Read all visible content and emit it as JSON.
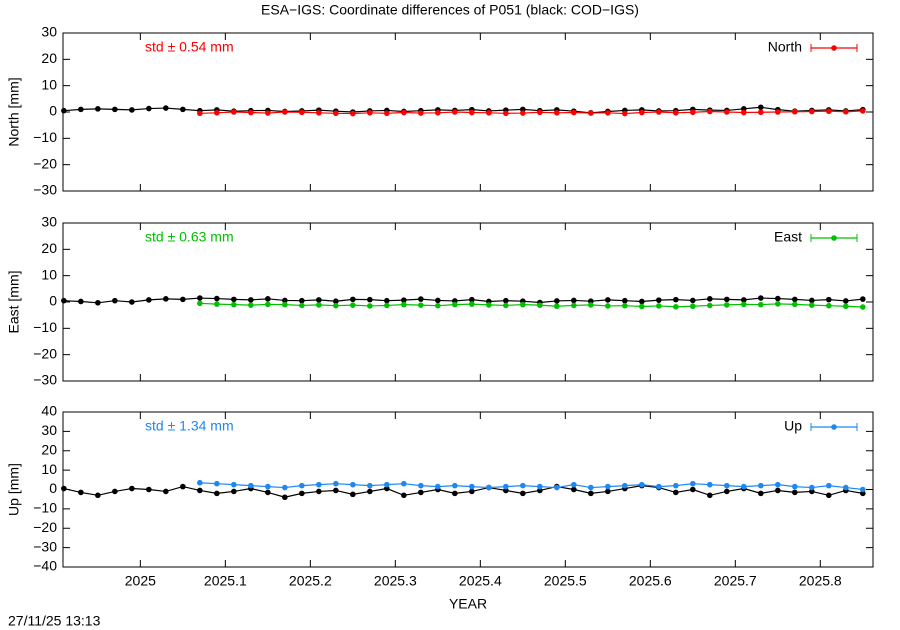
{
  "title": "ESA−IGS: Coordinate differences of P051 (black: COD−IGS)",
  "timestamp": "27/11/25 13:13",
  "chart_data": [
    {
      "type": "line",
      "ylabel": "North [mm]",
      "annotation": "std ± 0.54 mm",
      "legend": "top right",
      "xlim": [
        2024.909,
        2025.862
      ],
      "ylim": [
        -30,
        30
      ],
      "xticks": [
        2025,
        2025.1,
        2025.2,
        2025.3,
        2025.4,
        2025.5,
        2025.6,
        2025.7,
        2025.8
      ],
      "yticks": [
        {
          "value": -30,
          "label": "−30"
        },
        {
          "value": -20,
          "label": "−20"
        },
        {
          "value": -10,
          "label": "−10"
        },
        0,
        10,
        20,
        30
      ],
      "x": [
        2024.91,
        2024.93,
        2024.95,
        2024.97,
        2024.99,
        2025.01,
        2025.03,
        2025.05,
        2025.07,
        2025.09,
        2025.11,
        2025.13,
        2025.15,
        2025.17,
        2025.19,
        2025.21,
        2025.23,
        2025.25,
        2025.27,
        2025.29,
        2025.31,
        2025.33,
        2025.35,
        2025.37,
        2025.39,
        2025.41,
        2025.43,
        2025.45,
        2025.47,
        2025.49,
        2025.51,
        2025.53,
        2025.55,
        2025.57,
        2025.59,
        2025.61,
        2025.63,
        2025.65,
        2025.67,
        2025.69,
        2025.71,
        2025.73,
        2025.75,
        2025.77,
        2025.79,
        2025.81,
        2025.83,
        2025.85
      ],
      "series": [
        {
          "color": "#000000",
          "values": [
            0.5,
            1,
            1.2,
            1,
            0.8,
            1.3,
            1.5,
            1,
            0.5,
            0.8,
            0.3,
            0.5,
            0.6,
            0.2,
            0.4,
            0.7,
            0.3,
            0,
            0.4,
            0.6,
            0.2,
            0.5,
            0.8,
            0.6,
            0.9,
            0.4,
            0.7,
            1,
            0.5,
            0.8,
            0.3,
            -0.3,
            0.2,
            0.6,
            0.8,
            0.4,
            0.5,
            1,
            0.7,
            0.6,
            1.2,
            1.8,
            0.9,
            0.3,
            0.6,
            0.8,
            0.4,
            0.9
          ]
        },
        {
          "name": "North",
          "color": "#ff0000",
          "values": [
            null,
            null,
            null,
            null,
            null,
            null,
            null,
            null,
            -0.5,
            -0.3,
            0,
            -0.2,
            -0.4,
            0,
            -0.1,
            -0.3,
            -0.5,
            -0.6,
            -0.3,
            -0.5,
            -0.2,
            -0.4,
            -0.3,
            0,
            -0.2,
            -0.3,
            -0.5,
            -0.4,
            -0.1,
            -0.3,
            -0.2,
            -0.4,
            -0.3,
            -0.6,
            -0.2,
            0,
            -0.3,
            -0.1,
            0.2,
            0,
            -0.2,
            -0.1,
            0,
            0.1,
            0.2,
            0.3,
            0.1,
            0.4
          ]
        }
      ]
    },
    {
      "type": "line",
      "ylabel": "East [mm]",
      "annotation": "std ± 0.63 mm",
      "legend": "top right",
      "xlim": [
        2024.909,
        2025.862
      ],
      "ylim": [
        -30,
        30
      ],
      "xticks": [
        2025,
        2025.1,
        2025.2,
        2025.3,
        2025.4,
        2025.5,
        2025.6,
        2025.7,
        2025.8
      ],
      "yticks": [
        {
          "value": -30,
          "label": "−30"
        },
        {
          "value": -20,
          "label": "−20"
        },
        {
          "value": -10,
          "label": "−10"
        },
        0,
        10,
        20,
        30
      ],
      "x": [
        2024.91,
        2024.93,
        2024.95,
        2024.97,
        2024.99,
        2025.01,
        2025.03,
        2025.05,
        2025.07,
        2025.09,
        2025.11,
        2025.13,
        2025.15,
        2025.17,
        2025.19,
        2025.21,
        2025.23,
        2025.25,
        2025.27,
        2025.29,
        2025.31,
        2025.33,
        2025.35,
        2025.37,
        2025.39,
        2025.41,
        2025.43,
        2025.45,
        2025.47,
        2025.49,
        2025.51,
        2025.53,
        2025.55,
        2025.57,
        2025.59,
        2025.61,
        2025.63,
        2025.65,
        2025.67,
        2025.69,
        2025.71,
        2025.73,
        2025.75,
        2025.77,
        2025.79,
        2025.81,
        2025.83,
        2025.85
      ],
      "series": [
        {
          "color": "#000000",
          "values": [
            0.5,
            0.2,
            -0.3,
            0.5,
            0,
            0.8,
            1.2,
            1,
            1.5,
            1.3,
            1,
            0.8,
            1.2,
            0.6,
            0.5,
            0.8,
            0.3,
            1,
            0.9,
            0.5,
            0.7,
            1.1,
            0.6,
            0.4,
            0.9,
            0.2,
            0.5,
            0.3,
            -0.2,
            0.4,
            0.6,
            0.3,
            0.8,
            0.5,
            0.2,
            0.7,
            0.9,
            0.6,
            1.2,
            1,
            0.8,
            1.5,
            1.3,
            1,
            0.6,
            0.9,
            0.4,
            1.1
          ]
        },
        {
          "name": "East",
          "color": "#00c000",
          "values": [
            null,
            null,
            null,
            null,
            null,
            null,
            null,
            null,
            -0.5,
            -0.8,
            -1,
            -1.2,
            -0.9,
            -1,
            -1.3,
            -1.1,
            -1.4,
            -1.2,
            -1.5,
            -1.3,
            -1,
            -1.2,
            -1.4,
            -1,
            -0.8,
            -1.1,
            -1.3,
            -1,
            -1.2,
            -1.6,
            -1.3,
            -1.1,
            -1.5,
            -1.4,
            -1.7,
            -1.5,
            -1.8,
            -1.6,
            -1.3,
            -1.1,
            -0.9,
            -1,
            -0.7,
            -0.9,
            -1.2,
            -1.4,
            -1.6,
            -1.9
          ]
        }
      ]
    },
    {
      "type": "line",
      "ylabel": "Up [mm]",
      "xlabel": "YEAR",
      "annotation": "std ± 1.34 mm",
      "legend": "top right",
      "xlim": [
        2024.909,
        2025.862
      ],
      "ylim": [
        -40,
        40
      ],
      "xticks": [
        2025,
        2025.1,
        2025.2,
        2025.3,
        2025.4,
        2025.5,
        2025.6,
        2025.7,
        2025.8
      ],
      "yticks": [
        {
          "value": -40,
          "label": "−40"
        },
        {
          "value": -30,
          "label": "−30"
        },
        {
          "value": -20,
          "label": "−20"
        },
        {
          "value": -10,
          "label": "−10"
        },
        0,
        10,
        20,
        30,
        40
      ],
      "x": [
        2024.91,
        2024.93,
        2024.95,
        2024.97,
        2024.99,
        2025.01,
        2025.03,
        2025.05,
        2025.07,
        2025.09,
        2025.11,
        2025.13,
        2025.15,
        2025.17,
        2025.19,
        2025.21,
        2025.23,
        2025.25,
        2025.27,
        2025.29,
        2025.31,
        2025.33,
        2025.35,
        2025.37,
        2025.39,
        2025.41,
        2025.43,
        2025.45,
        2025.47,
        2025.49,
        2025.51,
        2025.53,
        2025.55,
        2025.57,
        2025.59,
        2025.61,
        2025.63,
        2025.65,
        2025.67,
        2025.69,
        2025.71,
        2025.73,
        2025.75,
        2025.77,
        2025.79,
        2025.81,
        2025.83,
        2025.85
      ],
      "series": [
        {
          "color": "#000000",
          "values": [
            0.5,
            -1.5,
            -3,
            -1,
            0.5,
            0,
            -1,
            1.5,
            -0.5,
            -2,
            -1,
            0.5,
            -1.5,
            -4,
            -2,
            -1,
            -0.5,
            -2.5,
            -1,
            0.5,
            -3,
            -1.5,
            0,
            -2,
            -1,
            1,
            -0.5,
            -2,
            -0.5,
            1.5,
            0,
            -2,
            -1,
            0.5,
            2,
            1,
            -1.5,
            0,
            -3,
            -1,
            0.5,
            -2,
            -0.5,
            -1.5,
            -1,
            -3,
            -0.5,
            -2
          ]
        },
        {
          "name": "Up",
          "color": "#1e88f0",
          "values": [
            null,
            null,
            null,
            null,
            null,
            null,
            null,
            null,
            3.5,
            3,
            2.5,
            2,
            1.5,
            1,
            2,
            2.5,
            3,
            2.5,
            2,
            2.5,
            3,
            2,
            1.5,
            2,
            1.5,
            1,
            1.5,
            2,
            1.5,
            1,
            2.5,
            1,
            1.5,
            2,
            2.5,
            1.5,
            2,
            3,
            2.5,
            2,
            1.5,
            2,
            2.5,
            1.5,
            1,
            2,
            1,
            0
          ]
        }
      ]
    }
  ]
}
